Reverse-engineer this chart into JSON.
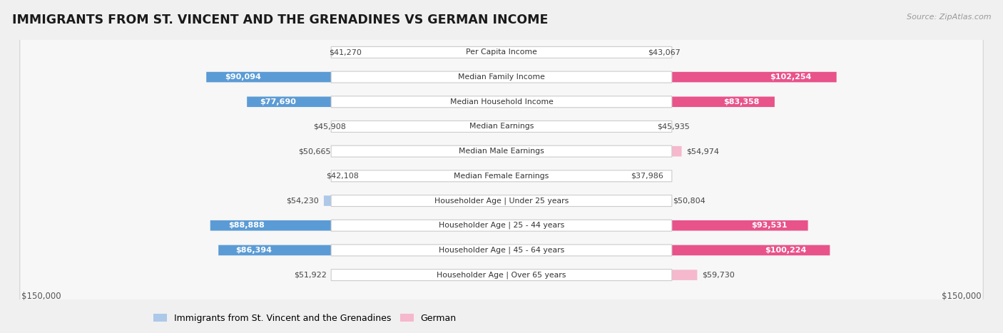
{
  "title": "IMMIGRANTS FROM ST. VINCENT AND THE GRENADINES VS GERMAN INCOME",
  "source": "Source: ZipAtlas.com",
  "categories": [
    "Per Capita Income",
    "Median Family Income",
    "Median Household Income",
    "Median Earnings",
    "Median Male Earnings",
    "Median Female Earnings",
    "Householder Age | Under 25 years",
    "Householder Age | 25 - 44 years",
    "Householder Age | 45 - 64 years",
    "Householder Age | Over 65 years"
  ],
  "left_values": [
    41270,
    90094,
    77690,
    45908,
    50665,
    42108,
    54230,
    88888,
    86394,
    51922
  ],
  "right_values": [
    43067,
    102254,
    83358,
    45935,
    54974,
    37986,
    50804,
    93531,
    100224,
    59730
  ],
  "left_labels": [
    "$41,270",
    "$90,094",
    "$77,690",
    "$45,908",
    "$50,665",
    "$42,108",
    "$54,230",
    "$88,888",
    "$86,394",
    "$51,922"
  ],
  "right_labels": [
    "$43,067",
    "$102,254",
    "$83,358",
    "$45,935",
    "$54,974",
    "$37,986",
    "$50,804",
    "$93,531",
    "$100,224",
    "$59,730"
  ],
  "max_value": 150000,
  "left_color_light": "#adc8e8",
  "left_color_dark": "#5b9bd5",
  "right_color_light": "#f5b8cc",
  "right_color_dark": "#e8538a",
  "label_threshold": 75000,
  "legend_left": "Immigrants from St. Vincent and the Grenadines",
  "legend_right": "German",
  "bg_color": "#f0f0f0",
  "row_bg_color": "#f7f7f7",
  "row_border_color": "#d8d8d8",
  "axis_label_left": "$150,000",
  "axis_label_right": "$150,000"
}
